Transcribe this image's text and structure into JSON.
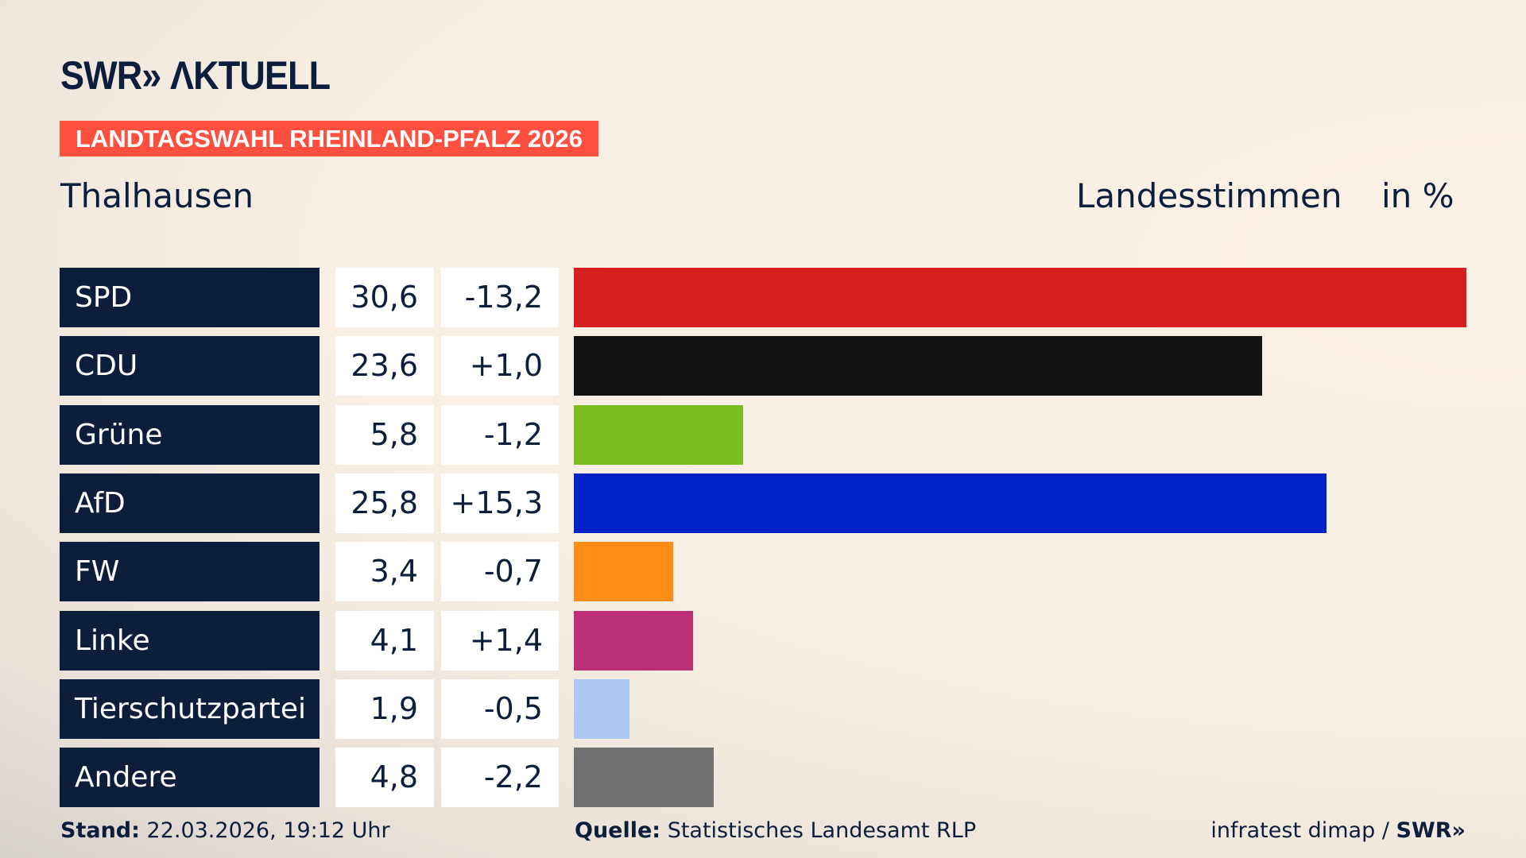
{
  "logo": "SWR» ΛKTUELL",
  "banner": "LANDTAGSWAHL RHEINLAND-PFALZ 2026",
  "place": "Thalhausen",
  "header": {
    "vote_type": "Landesstimmen",
    "unit": "in %"
  },
  "chart_data": {
    "type": "bar",
    "orientation": "horizontal",
    "categories": [
      "SPD",
      "CDU",
      "Grüne",
      "AfD",
      "FW",
      "Linke",
      "Tierschutzpartei",
      "Andere"
    ],
    "values": [
      30.6,
      23.6,
      5.8,
      25.8,
      3.4,
      4.1,
      1.9,
      4.8
    ],
    "value_labels": [
      "30,6",
      "23,6",
      "5,8",
      "25,8",
      "3,4",
      "4,1",
      "1,9",
      "4,8"
    ],
    "diff_labels": [
      "-13,2",
      "+1,0",
      "-1,2",
      "+15,3",
      "-0,7",
      "+1,4",
      "-0,5",
      "-2,2"
    ],
    "diffs": [
      -13.2,
      1.0,
      -1.2,
      15.3,
      -0.7,
      1.4,
      -0.5,
      -2.2
    ],
    "colors": [
      "#d81f20",
      "#131313",
      "#7abd1e",
      "#0022c8",
      "#ff8c17",
      "#bd3075",
      "#acc8f0",
      "#717173"
    ],
    "unit": "%"
  },
  "footer": {
    "stand_label": "Stand:",
    "stand_value": "22.03.2026, 19:12 Uhr",
    "source_label": "Quelle:",
    "source_value": "Statistisches Landesamt RLP",
    "credit": "infratest dimap /",
    "credit_logo": "SWR»"
  }
}
